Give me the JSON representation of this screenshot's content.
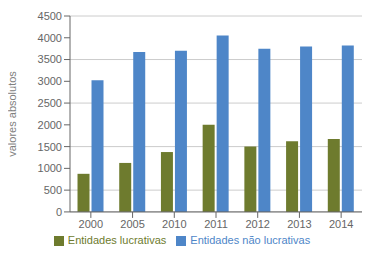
{
  "chart_data": {
    "type": "bar",
    "categories": [
      "2000",
      "2005",
      "2010",
      "2011",
      "2012",
      "2013",
      "2014"
    ],
    "series": [
      {
        "name": "Entidades lucrativas",
        "color": "#6e7b2e",
        "values": [
          875,
          1125,
          1375,
          2000,
          1500,
          1625,
          1675
        ]
      },
      {
        "name": "Entidades não lucrativas",
        "color": "#4e86c8",
        "values": [
          3025,
          3675,
          3700,
          4050,
          3750,
          3800,
          3825
        ]
      }
    ],
    "ylabel": "valores absolutos",
    "ylim": [
      0,
      4500
    ],
    "yticks": [
      0,
      500,
      1000,
      1500,
      2000,
      2500,
      3000,
      3500,
      4000,
      4500
    ],
    "grid": true,
    "legend": "bottom"
  }
}
